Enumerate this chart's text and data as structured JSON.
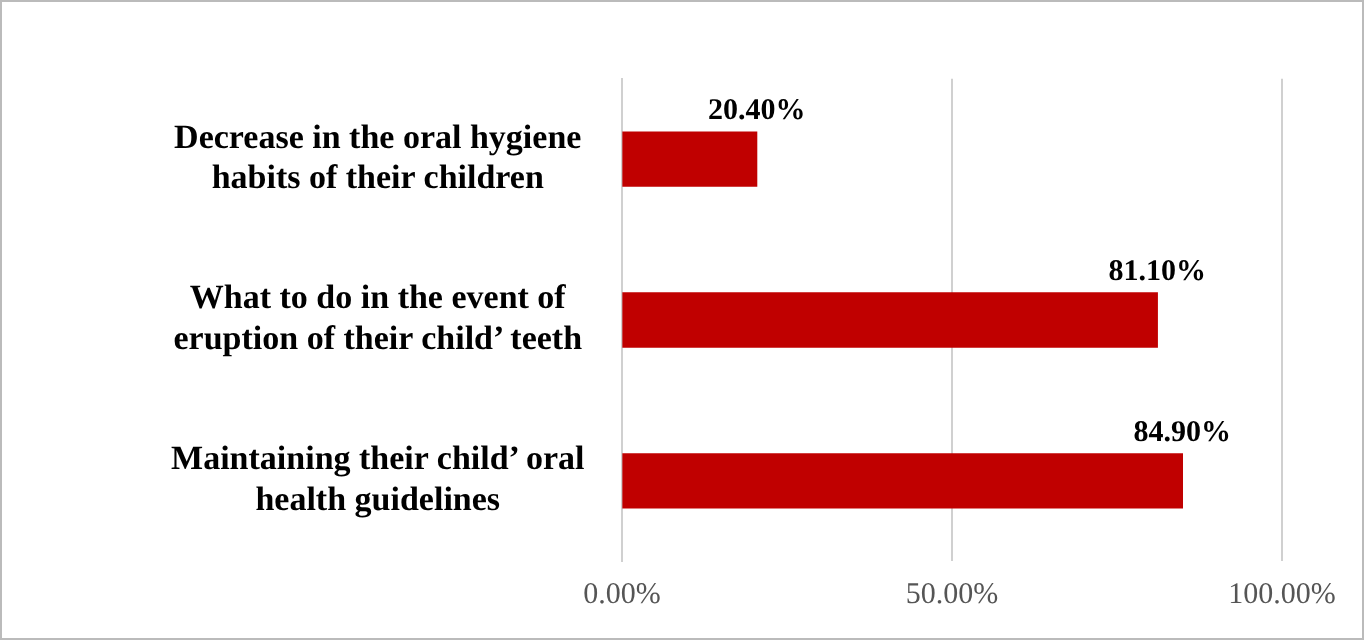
{
  "chart_data": {
    "type": "bar",
    "orientation": "horizontal",
    "categories": [
      "Decrease in the oral hygiene habits of their children",
      "What to do in the event of eruption of their child’ teeth",
      "Maintaining their child’ oral health guidelines"
    ],
    "values": [
      20.4,
      81.1,
      84.9
    ],
    "value_labels": [
      "20.40%",
      "81.10%",
      "84.90%"
    ],
    "color": "#c00000",
    "xlim": [
      0,
      100
    ],
    "xticks": [
      {
        "value": 0,
        "label": "0.00%"
      },
      {
        "value": 50,
        "label": "50.00%"
      },
      {
        "value": 100,
        "label": "100.00%"
      }
    ],
    "grid": "x",
    "legend": false
  }
}
